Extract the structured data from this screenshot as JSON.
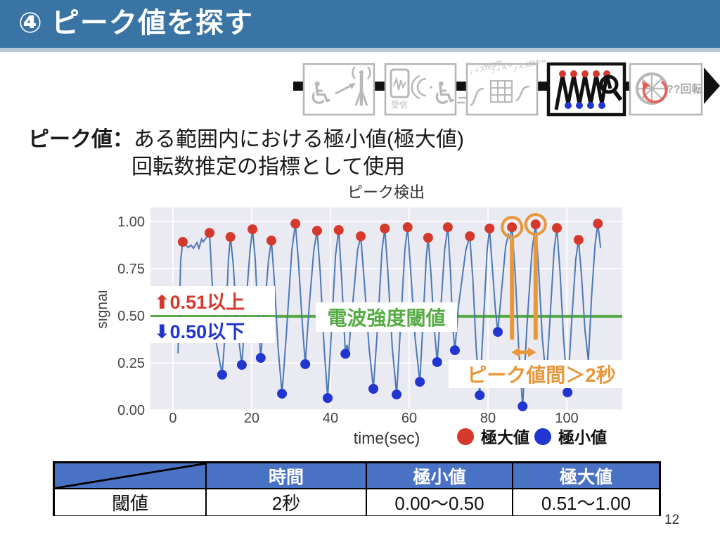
{
  "page": {
    "number": "12"
  },
  "header": {
    "title": "④ ピーク値を探す"
  },
  "description": {
    "term": "ピーク値：",
    "line1": "ある範囲内における極小値(極大値)",
    "line2": "回転数推定の指標として使用"
  },
  "pipeline": {
    "steps": [
      {
        "name": "wheelchair-transmit"
      },
      {
        "name": "receive",
        "label": "受信"
      },
      {
        "name": "noise-filter",
        "labels": [
          "ノイズ除去前",
          "フィルタ",
          "ノイズ除去後"
        ]
      },
      {
        "name": "peak-search",
        "active": true
      },
      {
        "name": "rotation-estimate",
        "label": "??回転"
      }
    ]
  },
  "chart_data": {
    "type": "line",
    "title": "ピーク検出",
    "xlabel": "time(sec)",
    "ylabel": "signal",
    "xlim": [
      -5.7,
      114.1
    ],
    "ylim": [
      0,
      1.075
    ],
    "xticks": [
      0,
      20,
      40,
      60,
      80,
      100
    ],
    "yticks": [
      0,
      0.25,
      0.5,
      0.75,
      1.0
    ],
    "grid": true,
    "bg_color": "#eaeaf2",
    "line_color": "#4c79b5",
    "threshold": {
      "value": 0.497,
      "label": "電波強度閾値",
      "color": "#56ab44"
    },
    "series_points": [
      [
        1.3,
        0.3
      ],
      [
        2.0,
        0.8
      ],
      [
        2.5,
        0.892
      ],
      [
        3.0,
        0.881
      ],
      [
        3.9,
        0.862
      ],
      [
        4.6,
        0.875
      ],
      [
        5.2,
        0.858
      ],
      [
        6.1,
        0.888
      ],
      [
        6.6,
        0.858
      ],
      [
        7.3,
        0.907
      ],
      [
        7.7,
        0.892
      ],
      [
        8.6,
        0.918
      ],
      [
        9.3,
        0.94
      ],
      [
        9.9,
        0.7
      ],
      [
        10.8,
        0.38
      ],
      [
        12.5,
        0.187
      ],
      [
        13.4,
        0.45
      ],
      [
        14.1,
        0.8
      ],
      [
        14.6,
        0.918
      ],
      [
        15.3,
        0.78
      ],
      [
        16.3,
        0.45
      ],
      [
        17.5,
        0.239
      ],
      [
        18.5,
        0.55
      ],
      [
        19.6,
        0.85
      ],
      [
        20.2,
        0.959
      ],
      [
        20.9,
        0.8
      ],
      [
        21.6,
        0.5
      ],
      [
        22.3,
        0.276
      ],
      [
        23.2,
        0.52
      ],
      [
        24.3,
        0.8
      ],
      [
        25.0,
        0.899
      ],
      [
        25.7,
        0.7
      ],
      [
        26.7,
        0.33
      ],
      [
        27.7,
        0.086
      ],
      [
        28.8,
        0.4
      ],
      [
        30.2,
        0.85
      ],
      [
        31.1,
        0.989
      ],
      [
        31.9,
        0.78
      ],
      [
        32.8,
        0.48
      ],
      [
        33.6,
        0.243
      ],
      [
        34.6,
        0.55
      ],
      [
        35.8,
        0.85
      ],
      [
        36.6,
        0.951
      ],
      [
        37.4,
        0.73
      ],
      [
        38.4,
        0.33
      ],
      [
        39.3,
        0.063
      ],
      [
        40.2,
        0.4
      ],
      [
        41.3,
        0.82
      ],
      [
        42.1,
        0.955
      ],
      [
        42.9,
        0.68
      ],
      [
        43.8,
        0.298
      ],
      [
        44.2,
        0.345
      ],
      [
        44.6,
        0.3
      ],
      [
        45.6,
        0.55
      ],
      [
        46.9,
        0.85
      ],
      [
        47.7,
        0.922
      ],
      [
        48.6,
        0.68
      ],
      [
        49.8,
        0.33
      ],
      [
        50.9,
        0.112
      ],
      [
        52.0,
        0.45
      ],
      [
        53.1,
        0.85
      ],
      [
        53.8,
        0.963
      ],
      [
        54.6,
        0.73
      ],
      [
        55.7,
        0.33
      ],
      [
        56.8,
        0.082
      ],
      [
        57.8,
        0.45
      ],
      [
        58.9,
        0.85
      ],
      [
        59.6,
        0.97
      ],
      [
        60.4,
        0.73
      ],
      [
        61.5,
        0.38
      ],
      [
        62.7,
        0.149
      ],
      [
        63.6,
        0.5
      ],
      [
        64.3,
        0.8
      ],
      [
        64.8,
        0.914
      ],
      [
        65.5,
        0.73
      ],
      [
        66.3,
        0.45
      ],
      [
        67.1,
        0.254
      ],
      [
        67.9,
        0.5
      ],
      [
        69.0,
        0.85
      ],
      [
        69.8,
        0.97
      ],
      [
        70.5,
        0.73
      ],
      [
        71.0,
        0.45
      ],
      [
        71.6,
        0.317
      ],
      [
        72.5,
        0.55
      ],
      [
        74.4,
        0.85
      ],
      [
        75.4,
        0.922
      ],
      [
        76.2,
        0.68
      ],
      [
        77.0,
        0.33
      ],
      [
        77.9,
        0.078
      ],
      [
        78.8,
        0.45
      ],
      [
        79.8,
        0.85
      ],
      [
        80.4,
        0.963
      ],
      [
        81.2,
        0.73
      ],
      [
        81.9,
        0.53
      ],
      [
        82.5,
        0.414
      ],
      [
        83.3,
        0.6
      ],
      [
        84.5,
        0.87
      ],
      [
        85.2,
        0.93
      ],
      [
        85.6,
        0.91
      ],
      [
        86.1,
        0.97
      ],
      [
        86.9,
        0.73
      ],
      [
        87.8,
        0.33
      ],
      [
        88.8,
        0.019
      ],
      [
        89.9,
        0.45
      ],
      [
        91.2,
        0.85
      ],
      [
        92.1,
        0.985
      ],
      [
        92.9,
        0.73
      ],
      [
        93.8,
        0.38
      ],
      [
        94.8,
        0.16
      ],
      [
        95.8,
        0.5
      ],
      [
        96.8,
        0.85
      ],
      [
        97.5,
        0.966
      ],
      [
        98.3,
        0.73
      ],
      [
        99.2,
        0.38
      ],
      [
        100.2,
        0.093
      ],
      [
        101.2,
        0.45
      ],
      [
        102.3,
        0.8
      ],
      [
        103.0,
        0.903
      ],
      [
        103.8,
        0.7
      ],
      [
        104.6,
        0.43
      ],
      [
        105.5,
        0.26
      ],
      [
        106.3,
        0.6
      ],
      [
        107.2,
        0.88
      ],
      [
        107.9,
        0.989
      ],
      [
        108.6,
        0.86
      ]
    ],
    "maxima": {
      "label": "極大値",
      "color": "#d5392b",
      "points": [
        [
          2.5,
          0.892
        ],
        [
          9.3,
          0.94
        ],
        [
          14.6,
          0.918
        ],
        [
          20.2,
          0.959
        ],
        [
          25.0,
          0.899
        ],
        [
          31.1,
          0.989
        ],
        [
          36.6,
          0.951
        ],
        [
          42.1,
          0.955
        ],
        [
          47.7,
          0.922
        ],
        [
          53.8,
          0.963
        ],
        [
          59.6,
          0.97
        ],
        [
          64.8,
          0.914
        ],
        [
          69.8,
          0.97
        ],
        [
          75.4,
          0.922
        ],
        [
          80.4,
          0.963
        ],
        [
          86.1,
          0.97
        ],
        [
          92.1,
          0.985
        ],
        [
          97.5,
          0.966
        ],
        [
          103.0,
          0.903
        ],
        [
          107.9,
          0.989
        ]
      ]
    },
    "minima": {
      "label": "極小値",
      "color": "#2135d1",
      "points": [
        [
          12.5,
          0.187
        ],
        [
          17.5,
          0.239
        ],
        [
          22.3,
          0.276
        ],
        [
          27.7,
          0.086
        ],
        [
          33.6,
          0.243
        ],
        [
          39.3,
          0.063
        ],
        [
          43.8,
          0.298
        ],
        [
          50.9,
          0.112
        ],
        [
          56.8,
          0.082
        ],
        [
          62.7,
          0.149
        ],
        [
          67.1,
          0.254
        ],
        [
          71.6,
          0.317
        ],
        [
          77.9,
          0.078
        ],
        [
          82.5,
          0.414
        ],
        [
          88.8,
          0.019
        ],
        [
          100.2,
          0.093
        ]
      ]
    },
    "annotations": {
      "above": {
        "text": "⬆0.51以上",
        "color": "#d5392b"
      },
      "below": {
        "text": "⬇0.50以下",
        "color": "#2135d1"
      },
      "gap": {
        "text": "ピーク値間＞2秒",
        "color": "#e8973a",
        "circled_peaks_x": [
          86.1,
          92.1
        ]
      }
    }
  },
  "table": {
    "headers": [
      "",
      "時間",
      "極小値",
      "極大値"
    ],
    "rows": [
      [
        "閾値",
        "2秒",
        "0.00〜0.50",
        "0.51〜1.00"
      ]
    ]
  }
}
